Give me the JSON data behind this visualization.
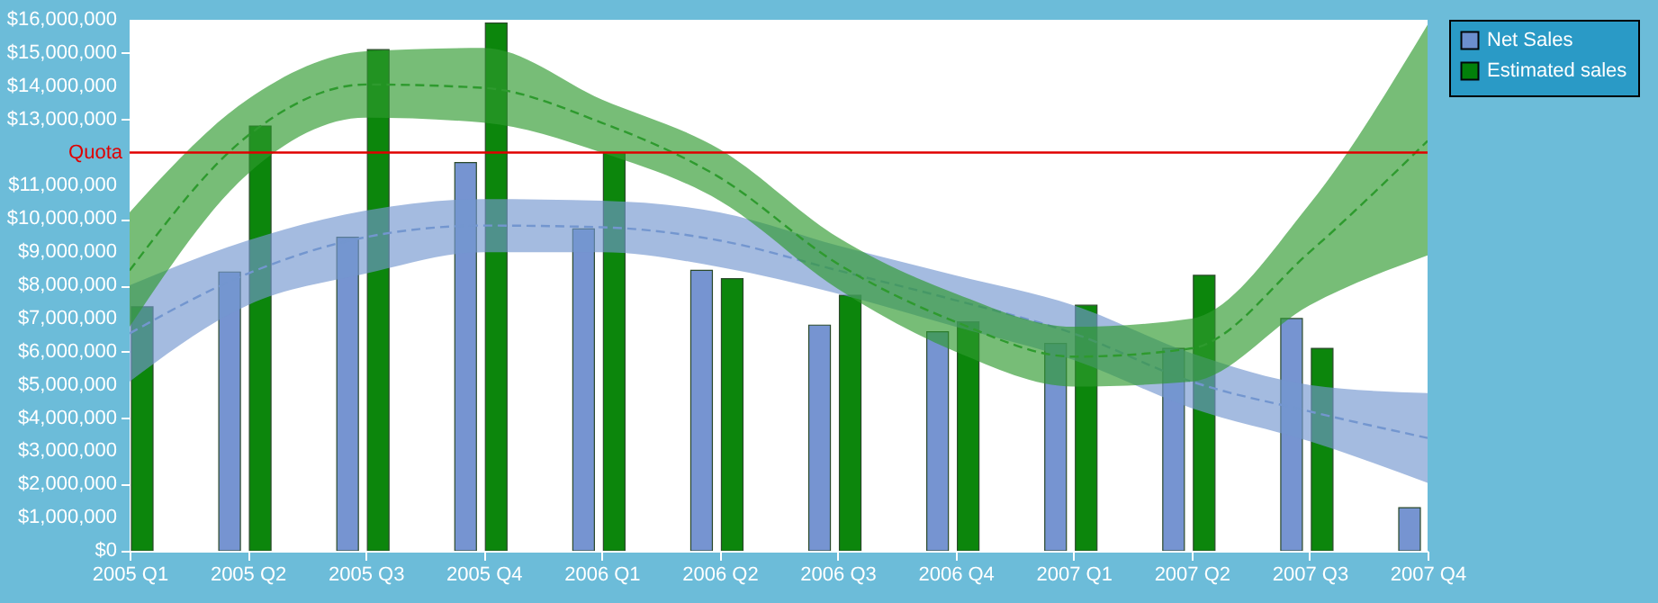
{
  "chart_data": {
    "type": "bar",
    "categories": [
      "2005 Q1",
      "2005 Q2",
      "2005 Q3",
      "2005 Q4",
      "2006 Q1",
      "2006 Q2",
      "2006 Q3",
      "2006 Q4",
      "2007 Q1",
      "2007 Q2",
      "2007 Q3",
      "2007 Q4"
    ],
    "series": [
      {
        "name": "Net Sales",
        "color": "#6f8fcf",
        "values": [
          null,
          8400000,
          9450000,
          11700000,
          9700000,
          8450000,
          6800000,
          6600000,
          6250000,
          6100000,
          7000000,
          1300000
        ]
      },
      {
        "name": "Estimated sales",
        "color": "#008000",
        "values": [
          7350000,
          12800000,
          15100000,
          15900000,
          12000000,
          8200000,
          7700000,
          6900000,
          7400000,
          8300000,
          6100000,
          null
        ]
      },
      {
        "type": "line",
        "color": "#7396cf",
        "line_style": "dashed",
        "values": [
          6550000,
          8350000,
          9450000,
          9800000,
          9750000,
          9350000,
          8450000,
          7550000,
          6550000,
          5100000,
          4200000,
          3400000
        ],
        "lower": [
          5100000,
          7400000,
          8350000,
          9000000,
          9000000,
          8550000,
          7750000,
          6750000,
          5750000,
          4300000,
          3300000,
          2050000
        ],
        "upper": [
          8000000,
          9350000,
          10250000,
          10600000,
          10550000,
          10200000,
          9200000,
          8300000,
          7400000,
          5950000,
          5000000,
          4750000
        ]
      },
      {
        "type": "line",
        "color": "#2e9a2e",
        "line_style": "dashed",
        "values": [
          8450000,
          12500000,
          14050000,
          13950000,
          12900000,
          11250000,
          8650000,
          6900000,
          5850000,
          6100000,
          9000000,
          12350000
        ],
        "lower": [
          6750000,
          11350000,
          13050000,
          12900000,
          12000000,
          10550000,
          7900000,
          6000000,
          4950000,
          5100000,
          7400000,
          8900000
        ],
        "upper": [
          10200000,
          13600000,
          15050000,
          15150000,
          13600000,
          12100000,
          9450000,
          7750000,
          6750000,
          7000000,
          10450000,
          15850000
        ]
      }
    ],
    "ylim": [
      0,
      16000000
    ],
    "yticks": [
      {
        "value": 0,
        "label": "$0"
      },
      {
        "value": 1000000,
        "label": "$1,000,000"
      },
      {
        "value": 2000000,
        "label": "$2,000,000"
      },
      {
        "value": 3000000,
        "label": "$3,000,000"
      },
      {
        "value": 4000000,
        "label": "$4,000,000"
      },
      {
        "value": 5000000,
        "label": "$5,000,000"
      },
      {
        "value": 6000000,
        "label": "$6,000,000"
      },
      {
        "value": 7000000,
        "label": "$7,000,000"
      },
      {
        "value": 8000000,
        "label": "$8,000,000"
      },
      {
        "value": 9000000,
        "label": "$9,000,000"
      },
      {
        "value": 10000000,
        "label": "$10,000,000"
      },
      {
        "value": 11000000,
        "label": "$11,000,000"
      },
      {
        "value": 13000000,
        "label": "$13,000,000"
      },
      {
        "value": 14000000,
        "label": "$14,000,000"
      },
      {
        "value": 15000000,
        "label": "$15,000,000"
      },
      {
        "value": 16000000,
        "label": "$16,000,000"
      }
    ],
    "ref_lines": [
      {
        "axis": "y",
        "value": 12000000,
        "label": "Quota",
        "color": "#e00000"
      }
    ],
    "grid": false,
    "legend": "top right",
    "marker": "none"
  }
}
